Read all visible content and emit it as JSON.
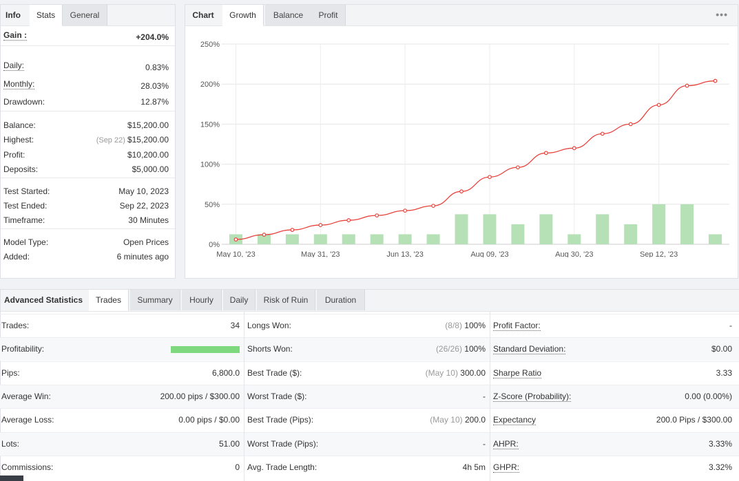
{
  "info": {
    "tabs": [
      {
        "label": "Info",
        "active": false,
        "is_label": true
      },
      {
        "label": "Stats",
        "active": true
      },
      {
        "label": "General",
        "active": false
      }
    ],
    "groups": [
      [
        {
          "label": "Gain :",
          "value": "+204.0%",
          "label_style": "bold dotted",
          "value_style": "green bold"
        },
        {
          "label": "Daily:",
          "value": "0.83%",
          "label_style": "dotted"
        },
        {
          "label": "Monthly:",
          "value": "28.03%",
          "label_style": "dotted"
        },
        {
          "label": "Drawdown:",
          "value": "12.87%"
        }
      ],
      [
        {
          "label": "Balance:",
          "value": "$15,200.00"
        },
        {
          "label": "Highest:",
          "value": "$15,200.00",
          "note": "(Sep 22)"
        },
        {
          "label": "Profit:",
          "value": "$10,200.00",
          "value_style": "green"
        },
        {
          "label": "Deposits:",
          "value": "$5,000.00"
        }
      ],
      [
        {
          "label": "Test Started:",
          "value": "May 10, 2023"
        },
        {
          "label": "Test Ended:",
          "value": "Sep 22, 2023"
        },
        {
          "label": "Timeframe:",
          "value": "30 Minutes"
        }
      ],
      [
        {
          "label": "Model Type:",
          "value": "Open Prices"
        },
        {
          "label": "Added:",
          "value": "6 minutes ago"
        }
      ]
    ]
  },
  "chart_panel": {
    "tabs": [
      {
        "label": "Chart",
        "active": false,
        "is_label": true
      },
      {
        "label": "Growth",
        "active": true
      },
      {
        "label": "Balance",
        "active": false
      },
      {
        "label": "Profit",
        "active": false
      }
    ],
    "more_icon": "•••"
  },
  "chart_data": {
    "type": "line",
    "title": "",
    "xlabel": "",
    "ylabel": "",
    "ylim": [
      0,
      250
    ],
    "y_ticks": [
      "0%",
      "50%",
      "100%",
      "150%",
      "200%",
      "250%"
    ],
    "x_tick_labels": [
      "May 10, '23",
      "May 31, '23",
      "Jun 13, '23",
      "Aug 09, '23",
      "Aug 30, '23",
      "Sep 12, '23"
    ],
    "grid": true,
    "series": [
      {
        "type": "line",
        "color": "#e8413a",
        "values": [
          6,
          12,
          18,
          24,
          30,
          36,
          42,
          48,
          66,
          84,
          96,
          114,
          120,
          138,
          150,
          174,
          198,
          204
        ]
      },
      {
        "type": "bar",
        "color": "#b6e0b6",
        "values": [
          12.5,
          12.5,
          12.5,
          12.5,
          12.5,
          12.5,
          12.5,
          12.5,
          37.5,
          37.5,
          25,
          37.5,
          12.5,
          37.5,
          25,
          50,
          50,
          12.5
        ]
      }
    ]
  },
  "advanced": {
    "tabs": [
      {
        "label": "Advanced Statistics",
        "active": false,
        "is_label": true
      },
      {
        "label": "Trades",
        "active": true
      },
      {
        "label": "Summary",
        "active": false
      },
      {
        "label": "Hourly",
        "active": false
      },
      {
        "label": "Daily",
        "active": false
      },
      {
        "label": "Risk of Ruin",
        "active": false
      },
      {
        "label": "Duration",
        "active": false
      }
    ],
    "rows": [
      [
        {
          "label": "Trades:",
          "value": "34"
        },
        {
          "label": "Longs Won:",
          "note": "(8/8)",
          "value": "100%"
        },
        {
          "label": "Profit Factor:",
          "value": "-",
          "dotted": true
        }
      ],
      [
        {
          "label": "Profitability:",
          "bar_value": 1.0
        },
        {
          "label": "Shorts Won:",
          "note": "(26/26)",
          "value": "100%"
        },
        {
          "label": "Standard Deviation:",
          "value": "$0.00",
          "dotted": true
        }
      ],
      [
        {
          "label": "Pips:",
          "value": "6,800.0"
        },
        {
          "label": "Best Trade ($):",
          "note": "(May 10)",
          "value": "300.00"
        },
        {
          "label": "Sharpe Ratio",
          "value": "3.33",
          "dotted": true
        }
      ],
      [
        {
          "label": "Average Win:",
          "value": "200.00 pips / $300.00"
        },
        {
          "label": "Worst Trade ($):",
          "value": "-"
        },
        {
          "label": "Z-Score (Probability):",
          "value": "0.00 (0.00%)",
          "dotted": true
        }
      ],
      [
        {
          "label": "Average Loss:",
          "value": "0.00 pips / $0.00"
        },
        {
          "label": "Best Trade (Pips):",
          "note": "(May 10)",
          "value": "200.0"
        },
        {
          "label": "Expectancy",
          "value": "200.0 Pips / $300.00",
          "dotted": true
        }
      ],
      [
        {
          "label": "Lots:",
          "value": "51.00"
        },
        {
          "label": "Worst Trade (Pips):",
          "value": "-"
        },
        {
          "label": "AHPR:",
          "value": "3.33%",
          "dotted": true
        }
      ],
      [
        {
          "label": "Commissions:",
          "value": "0"
        },
        {
          "label": "Avg. Trade Length:",
          "value": "4h 5m"
        },
        {
          "label": "GHPR:",
          "value": "3.32%",
          "dotted": true
        }
      ]
    ]
  }
}
